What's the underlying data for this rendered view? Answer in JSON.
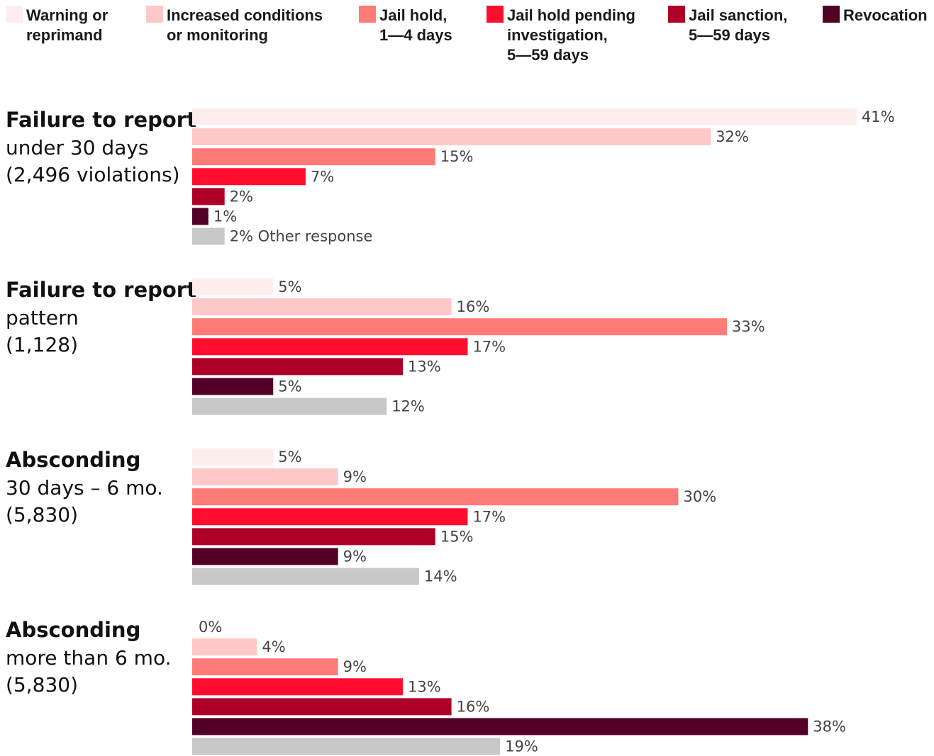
{
  "chart_data": {
    "type": "bar",
    "orientation": "horizontal",
    "unit": "%",
    "legend_position": "top",
    "grid": false,
    "xlim": [
      0,
      41
    ],
    "series": [
      {
        "key": "warning",
        "name": "Warning or reprimand",
        "label_lines": [
          "Warning or",
          "reprimand"
        ],
        "color": "#fdeeee"
      },
      {
        "key": "increased",
        "name": "Increased conditions or monitoring",
        "label_lines": [
          "Increased conditions",
          "or monitoring"
        ],
        "color": "#fec8c8"
      },
      {
        "key": "jail_1_4",
        "name": "Jail hold, 1—4 days",
        "label_lines": [
          "Jail hold,",
          "1—4 days"
        ],
        "color": "#ff7b78"
      },
      {
        "key": "jail_pending",
        "name": "Jail hold pending investigation, 5—59 days",
        "label_lines": [
          "Jail hold pending",
          "investigation,",
          "5—59 days"
        ],
        "color": "#ff0d2f"
      },
      {
        "key": "jail_sanction",
        "name": "Jail sanction, 5—59 days",
        "label_lines": [
          "Jail sanction,",
          "5—59 days"
        ],
        "color": "#ae0026"
      },
      {
        "key": "revocation",
        "name": "Revocation",
        "label_lines": [
          "Revocation"
        ],
        "color": "#520026"
      },
      {
        "key": "other",
        "name": "Other response",
        "label_lines": [],
        "color": "#c8c8c8"
      }
    ],
    "other_label": "Other response",
    "groups": [
      {
        "title": "Failure to report",
        "subtitle": "under 30 days",
        "count": "(2,496 violations)",
        "values": [
          41,
          32,
          15,
          7,
          2,
          1,
          2
        ]
      },
      {
        "title": "Failure to report",
        "subtitle": "pattern",
        "count": "(1,128)",
        "values": [
          5,
          16,
          33,
          17,
          13,
          5,
          12
        ]
      },
      {
        "title": "Absconding",
        "subtitle": "30 days – 6 mo.",
        "count": "(5,830)",
        "values": [
          5,
          9,
          30,
          17,
          15,
          9,
          14
        ]
      },
      {
        "title": "Absconding",
        "subtitle": "more than 6 mo.",
        "count": "(5,830)",
        "values": [
          0,
          4,
          9,
          13,
          16,
          38,
          19
        ]
      }
    ]
  }
}
